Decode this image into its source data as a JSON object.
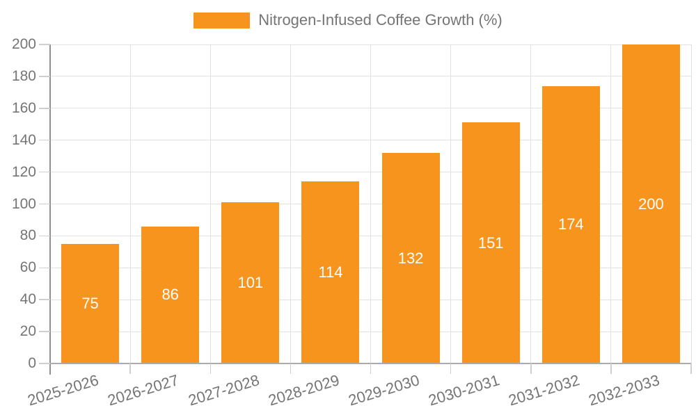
{
  "chart_data": {
    "type": "bar",
    "title": "",
    "legend": "Nitrogen-Infused Coffee Growth (%)",
    "legend_position": "top-center",
    "categories": [
      "2025-2026",
      "2026-2027",
      "2027-2028",
      "2028-2029",
      "2029-2030",
      "2030-2031",
      "2031-2032",
      "2032-2033"
    ],
    "values": [
      75,
      86,
      101,
      114,
      132,
      151,
      174,
      200
    ],
    "xlabel": "",
    "ylabel": "",
    "ylim": [
      0,
      200
    ],
    "ytick_step": 20,
    "yticks": [
      0,
      20,
      40,
      60,
      80,
      100,
      120,
      140,
      160,
      180,
      200
    ],
    "grid": "horizontal and vertical light gray gridlines",
    "value_labels": "centered inside bars, white",
    "colors": {
      "bar": "#f7941e",
      "value_label": "#ffffff",
      "axis_text": "#757575",
      "grid": "#e2e2e2",
      "axis_line": "#8f8f8f",
      "baseline": "#ababab",
      "tick": "#cfcfcf",
      "background": "#ffffff"
    }
  }
}
